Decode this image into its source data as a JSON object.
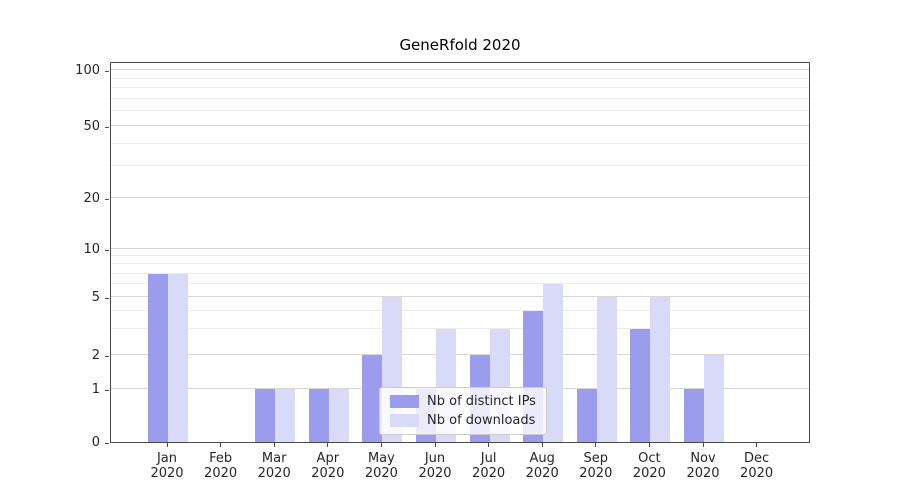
{
  "chart_data": {
    "type": "bar",
    "title": "GeneRfold 2020",
    "categories": [
      "Jan",
      "Feb",
      "Mar",
      "Apr",
      "May",
      "Jun",
      "Jul",
      "Aug",
      "Sep",
      "Oct",
      "Nov",
      "Dec"
    ],
    "year_label": "2020",
    "series": [
      {
        "name": "Nb of distinct IPs",
        "color": "#9c9cee",
        "values": [
          7,
          0,
          1,
          1,
          2,
          1,
          2,
          4,
          1,
          3,
          1,
          0
        ]
      },
      {
        "name": "Nb of downloads",
        "color": "#d9d9f8",
        "values": [
          7,
          0,
          1,
          1,
          5,
          3,
          3,
          6,
          5,
          5,
          2,
          0
        ]
      }
    ],
    "yaxis": {
      "scale": "symlog",
      "ticks": [
        0,
        1,
        2,
        5,
        10,
        20,
        50,
        100
      ],
      "minor_ticks": [
        3,
        4,
        6,
        7,
        8,
        9,
        30,
        40,
        60,
        70,
        80,
        90
      ]
    },
    "grid": "horizontal",
    "legend_position": "lower center inside"
  }
}
